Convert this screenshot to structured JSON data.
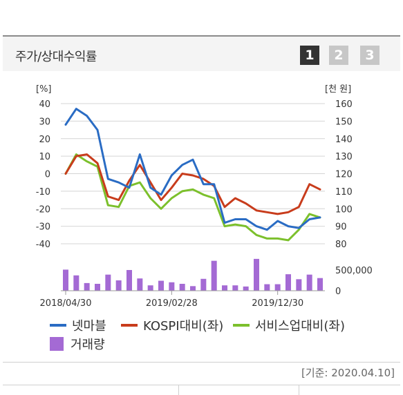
{
  "panel": {
    "title": "주가/상대수익률",
    "pages": [
      "1",
      "2",
      "3"
    ],
    "active_page": "1",
    "base_date": "[기준: 2020.04.10]"
  },
  "colors": {
    "netmarble": "#2a6cc4",
    "kospi": "#c83c1c",
    "service": "#7cc02c",
    "volume": "#a46ad4",
    "grid": "#d4d4d4"
  },
  "chart_data": {
    "type": "line",
    "left_axis_unit": "[%]",
    "right_axis_unit": "[천 원]",
    "left_ylim": [
      -40,
      40
    ],
    "left_ticks": [
      "40",
      "30",
      "20",
      "10",
      "0",
      "-10",
      "-20",
      "-30",
      "-40"
    ],
    "right_ylim": [
      80,
      160
    ],
    "right_ticks": [
      "160",
      "150",
      "140",
      "130",
      "120",
      "110",
      "100",
      "90",
      "80"
    ],
    "volume_ticks": [
      "500,000",
      "0"
    ],
    "volume_ylim": [
      0,
      900000
    ],
    "x_tick_labels": [
      "2018/04/30",
      "2019/02/28",
      "2019/12/30"
    ],
    "x_tick_index": [
      0,
      10,
      20
    ],
    "grid": true,
    "legend_position": "bottom",
    "series": [
      {
        "name": "넷마블",
        "axis": "left",
        "values": [
          28,
          37,
          33,
          25,
          -3,
          -5,
          -8,
          11,
          -8,
          -12,
          -1,
          5,
          8,
          -6,
          -6,
          -28,
          -26,
          -26,
          -30,
          -32,
          -27,
          -30,
          -31,
          -26,
          -25
        ]
      },
      {
        "name": "KOSPI대비(좌)",
        "axis": "left",
        "values": [
          0,
          10,
          11,
          6,
          -13,
          -15,
          -4,
          5,
          -5,
          -15,
          -8,
          0,
          -1,
          -3,
          -7,
          -19,
          -14,
          -17,
          -21,
          -22,
          -23,
          -22,
          -19,
          -6,
          -9
        ]
      },
      {
        "name": "서비스업대비(좌)",
        "axis": "left",
        "values": [
          0,
          11,
          7,
          4,
          -18,
          -19,
          -7,
          -5,
          -14,
          -20,
          -14,
          -10,
          -9,
          -12,
          -14,
          -30,
          -29,
          -30,
          -35,
          -37,
          -37,
          -38,
          -32,
          -23,
          -25
        ]
      },
      {
        "name": "거래량",
        "axis": "volume",
        "values": [
          550000,
          400000,
          200000,
          180000,
          420000,
          270000,
          540000,
          320000,
          140000,
          260000,
          220000,
          180000,
          120000,
          310000,
          780000,
          140000,
          140000,
          110000,
          830000,
          170000,
          170000,
          430000,
          300000,
          420000,
          330000
        ]
      }
    ]
  }
}
